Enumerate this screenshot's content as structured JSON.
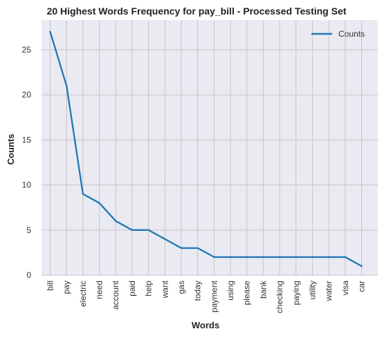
{
  "chart_data": {
    "type": "line",
    "title": "20 Highest Words Frequency for pay_bill - Processed Testing Set",
    "xlabel": "Words",
    "ylabel": "Counts",
    "categories": [
      "bill",
      "pay",
      "electric",
      "need",
      "account",
      "paid",
      "help",
      "want",
      "gas",
      "today",
      "payment",
      "using",
      "please",
      "bank",
      "checking",
      "paying",
      "utility",
      "water",
      "visa",
      "car"
    ],
    "series": [
      {
        "name": "Counts",
        "values": [
          27,
          21,
          9,
          8,
          6,
          5,
          5,
          4,
          3,
          3,
          2,
          2,
          2,
          2,
          2,
          2,
          2,
          2,
          2,
          1
        ]
      }
    ],
    "ylim": [
      0,
      28.3
    ],
    "yticks": [
      "0",
      "5",
      "10",
      "15",
      "20",
      "25"
    ],
    "grid": true,
    "legend": "top-right",
    "colors": {
      "line": "#1f77b4",
      "plot_bg": "#eaeaf2",
      "grid": "#c4c4c8"
    }
  }
}
